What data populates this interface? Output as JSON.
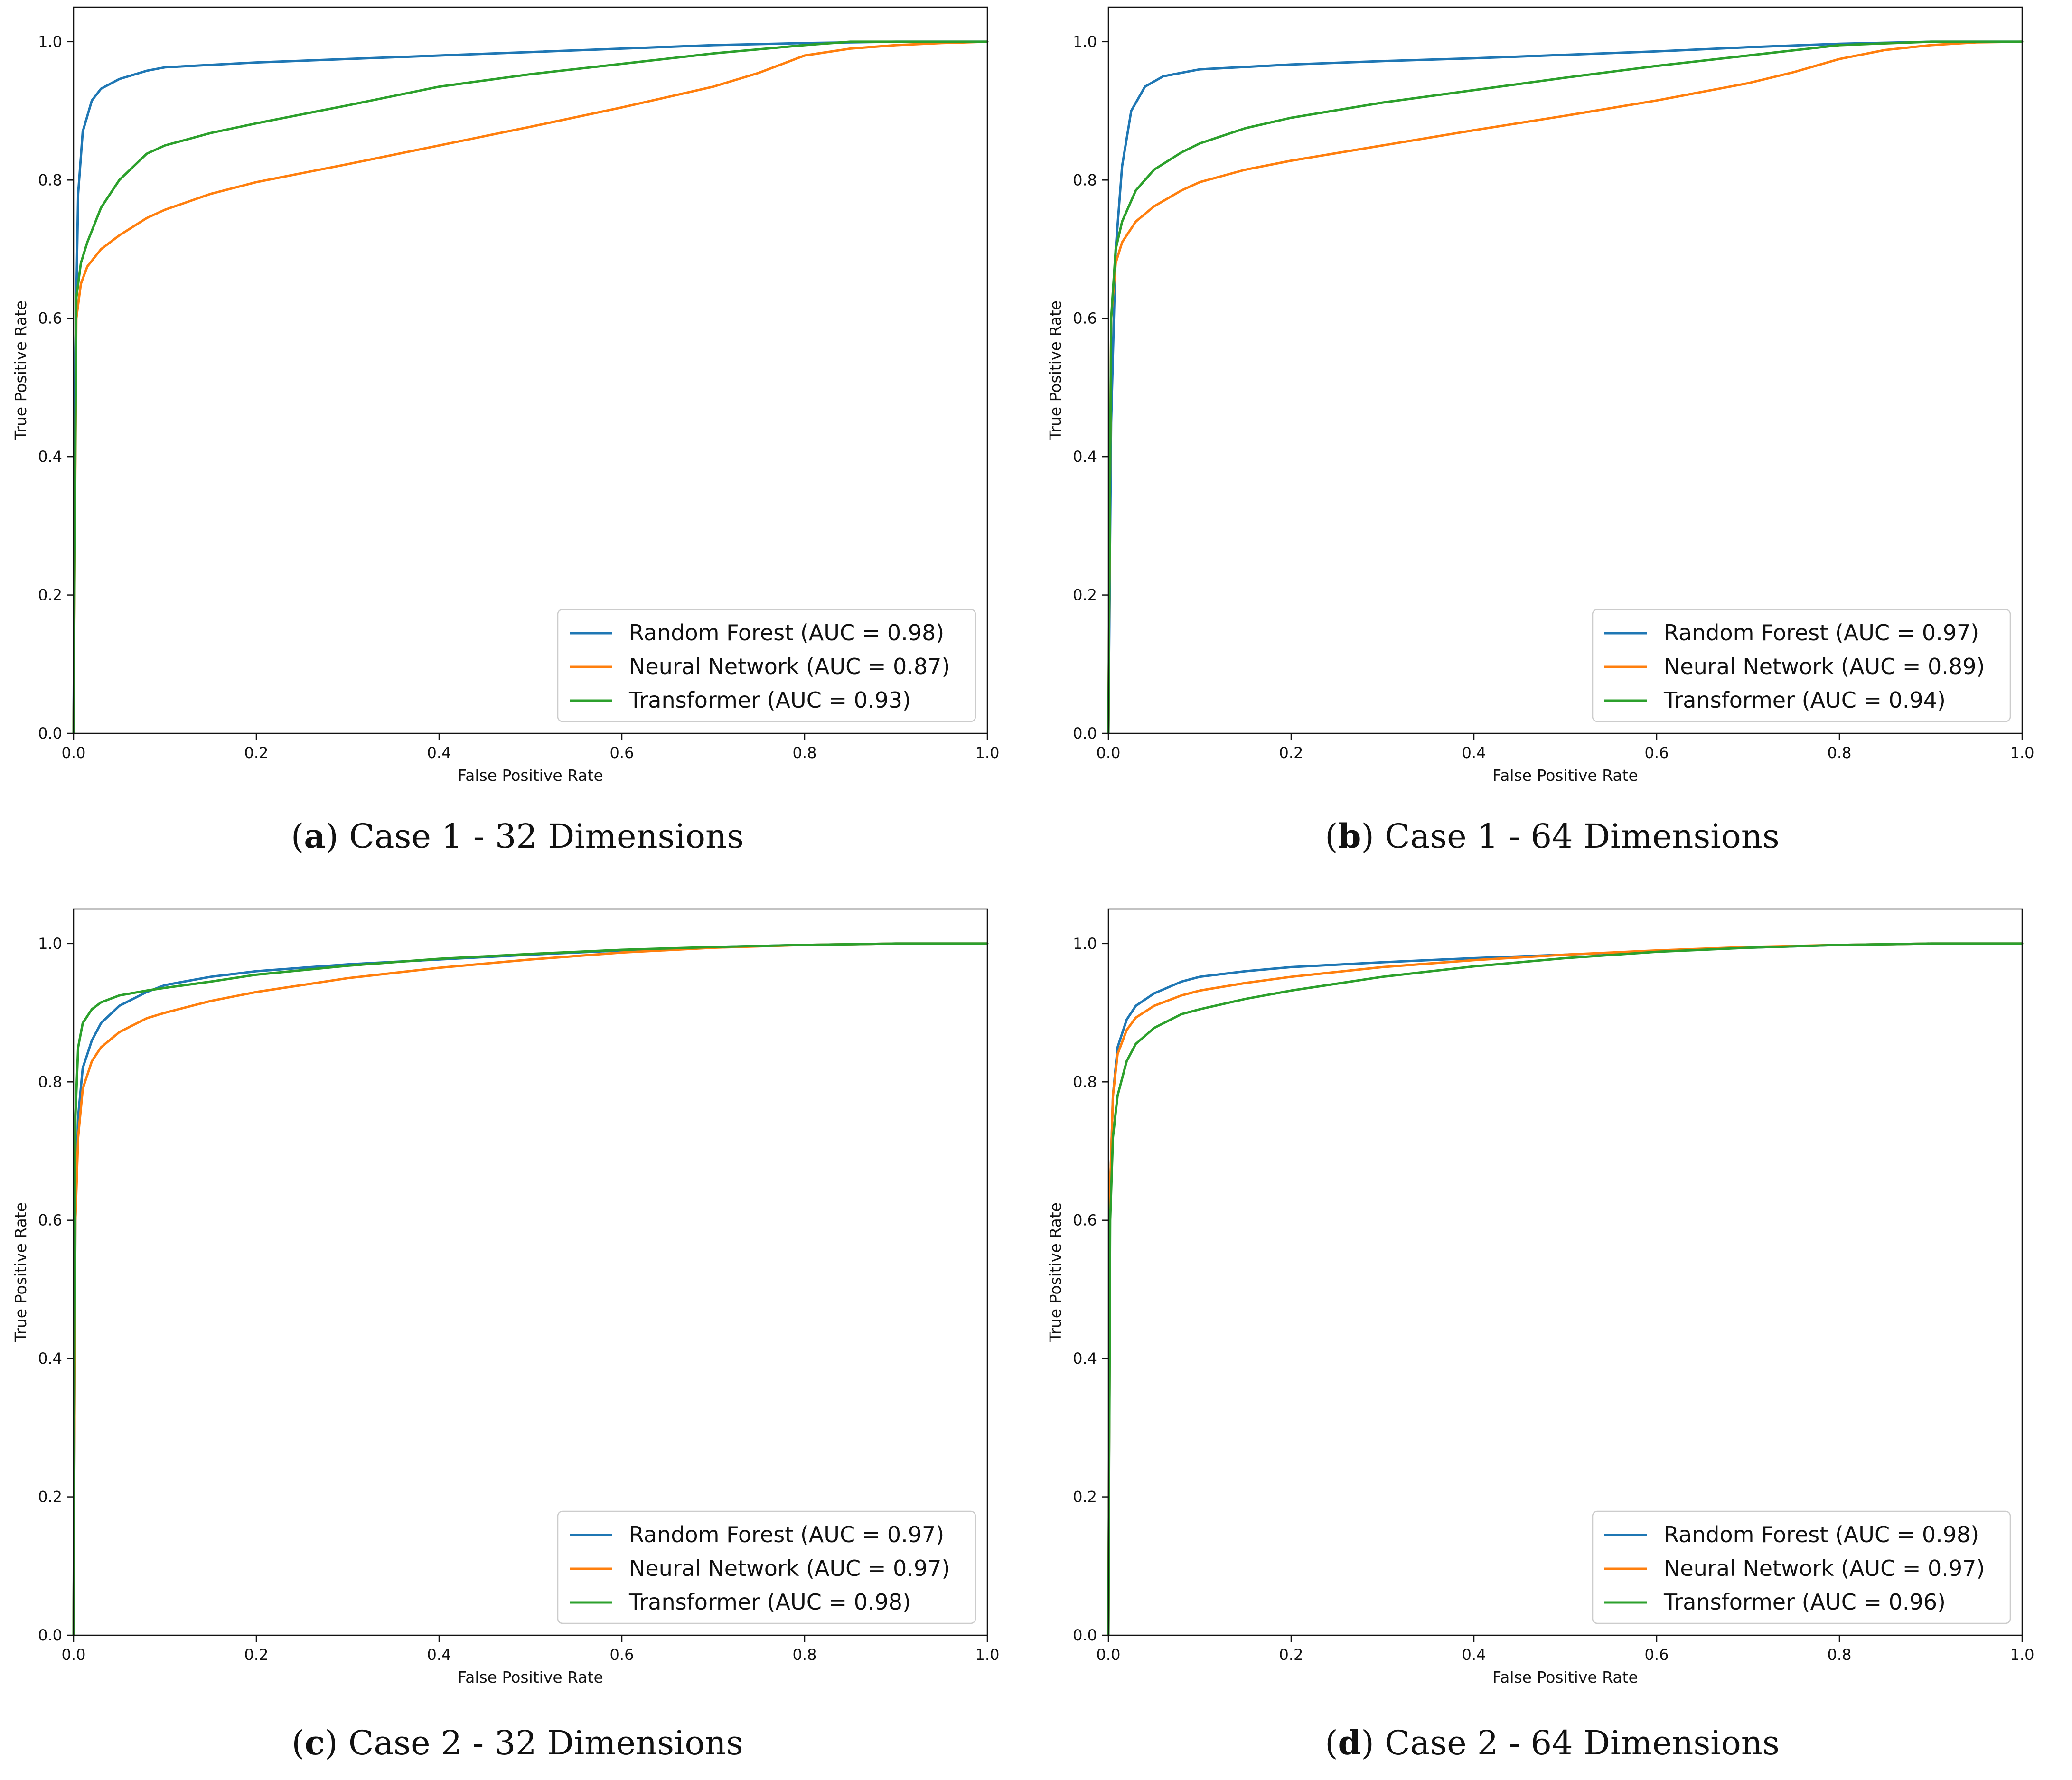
{
  "chart_data": [
    {
      "type": "line",
      "caption_letter": "a",
      "caption_text": "Case 1 - 32 Dimensions",
      "xlabel": "False Positive Rate",
      "ylabel": "True Positive Rate",
      "xlim": [
        0.0,
        1.0
      ],
      "ylim": [
        0.0,
        1.05
      ],
      "xticks": [
        "0.0",
        "0.2",
        "0.4",
        "0.6",
        "0.8",
        "1.0"
      ],
      "yticks": [
        "0.0",
        "0.2",
        "0.4",
        "0.6",
        "0.8",
        "1.0"
      ],
      "legend_position": "lower-right",
      "series": [
        {
          "name": "Random Forest (AUC = 0.98)",
          "color": "#1f77b4",
          "x": [
            0,
            0.002,
            0.005,
            0.01,
            0.02,
            0.03,
            0.05,
            0.08,
            0.1,
            0.2,
            0.3,
            0.4,
            0.5,
            0.6,
            0.7,
            0.8,
            0.9,
            1.0
          ],
          "y": [
            0,
            0.55,
            0.78,
            0.87,
            0.915,
            0.932,
            0.946,
            0.958,
            0.963,
            0.97,
            0.975,
            0.98,
            0.985,
            0.99,
            0.995,
            0.998,
            1.0,
            1.0
          ]
        },
        {
          "name": "Neural Network (AUC = 0.87)",
          "color": "#ff7f0e",
          "x": [
            0,
            0.003,
            0.008,
            0.015,
            0.03,
            0.05,
            0.08,
            0.1,
            0.15,
            0.2,
            0.3,
            0.4,
            0.5,
            0.6,
            0.7,
            0.75,
            0.8,
            0.85,
            0.9,
            0.95,
            1.0
          ],
          "y": [
            0,
            0.6,
            0.65,
            0.675,
            0.7,
            0.72,
            0.745,
            0.757,
            0.78,
            0.797,
            0.823,
            0.85,
            0.877,
            0.905,
            0.935,
            0.955,
            0.98,
            0.99,
            0.995,
            0.998,
            1.0
          ]
        },
        {
          "name": "Transformer (AUC = 0.93)",
          "color": "#2ca02c",
          "x": [
            0,
            0.003,
            0.008,
            0.015,
            0.03,
            0.05,
            0.08,
            0.1,
            0.15,
            0.2,
            0.3,
            0.4,
            0.5,
            0.6,
            0.7,
            0.8,
            0.85,
            0.9,
            1.0
          ],
          "y": [
            0,
            0.63,
            0.68,
            0.71,
            0.76,
            0.8,
            0.838,
            0.85,
            0.868,
            0.882,
            0.908,
            0.935,
            0.953,
            0.968,
            0.983,
            0.995,
            1.0,
            1.0,
            1.0
          ]
        }
      ]
    },
    {
      "type": "line",
      "caption_letter": "b",
      "caption_text": "Case 1 - 64 Dimensions",
      "xlabel": "False Positive Rate",
      "ylabel": "True Positive Rate",
      "xlim": [
        0.0,
        1.0
      ],
      "ylim": [
        0.0,
        1.05
      ],
      "xticks": [
        "0.0",
        "0.2",
        "0.4",
        "0.6",
        "0.8",
        "1.0"
      ],
      "yticks": [
        "0.0",
        "0.2",
        "0.4",
        "0.6",
        "0.8",
        "1.0"
      ],
      "legend_position": "lower-right",
      "series": [
        {
          "name": "Random Forest (AUC = 0.97)",
          "color": "#1f77b4",
          "x": [
            0,
            0.003,
            0.008,
            0.015,
            0.025,
            0.04,
            0.06,
            0.1,
            0.2,
            0.3,
            0.4,
            0.5,
            0.6,
            0.7,
            0.8,
            0.9,
            1.0
          ],
          "y": [
            0,
            0.45,
            0.7,
            0.82,
            0.9,
            0.935,
            0.95,
            0.96,
            0.967,
            0.972,
            0.976,
            0.981,
            0.986,
            0.992,
            0.997,
            1.0,
            1.0
          ]
        },
        {
          "name": "Neural Network (AUC = 0.89)",
          "color": "#ff7f0e",
          "x": [
            0,
            0.003,
            0.008,
            0.015,
            0.03,
            0.05,
            0.08,
            0.1,
            0.15,
            0.2,
            0.3,
            0.4,
            0.5,
            0.6,
            0.7,
            0.75,
            0.8,
            0.85,
            0.9,
            0.95,
            1.0
          ],
          "y": [
            0,
            0.6,
            0.68,
            0.71,
            0.74,
            0.762,
            0.785,
            0.797,
            0.815,
            0.828,
            0.85,
            0.872,
            0.893,
            0.915,
            0.94,
            0.956,
            0.975,
            0.988,
            0.995,
            0.999,
            1.0
          ]
        },
        {
          "name": "Transformer (AUC = 0.94)",
          "color": "#2ca02c",
          "x": [
            0,
            0.003,
            0.008,
            0.015,
            0.03,
            0.05,
            0.08,
            0.1,
            0.15,
            0.2,
            0.3,
            0.4,
            0.5,
            0.6,
            0.7,
            0.8,
            0.9,
            1.0
          ],
          "y": [
            0,
            0.6,
            0.7,
            0.74,
            0.785,
            0.815,
            0.84,
            0.853,
            0.875,
            0.89,
            0.912,
            0.93,
            0.948,
            0.965,
            0.98,
            0.995,
            1.0,
            1.0
          ]
        }
      ]
    },
    {
      "type": "line",
      "caption_letter": "c",
      "caption_text": "Case 2 - 32 Dimensions",
      "xlabel": "False Positive Rate",
      "ylabel": "True Positive Rate",
      "xlim": [
        0.0,
        1.0
      ],
      "ylim": [
        0.0,
        1.05
      ],
      "xticks": [
        "0.0",
        "0.2",
        "0.4",
        "0.6",
        "0.8",
        "1.0"
      ],
      "yticks": [
        "0.0",
        "0.2",
        "0.4",
        "0.6",
        "0.8",
        "1.0"
      ],
      "legend_position": "lower-right",
      "series": [
        {
          "name": "Random Forest (AUC = 0.97)",
          "color": "#1f77b4",
          "x": [
            0,
            0.002,
            0.005,
            0.01,
            0.02,
            0.03,
            0.05,
            0.08,
            0.1,
            0.15,
            0.2,
            0.3,
            0.4,
            0.5,
            0.6,
            0.7,
            0.8,
            0.9,
            1.0
          ],
          "y": [
            0,
            0.6,
            0.75,
            0.82,
            0.86,
            0.885,
            0.91,
            0.93,
            0.94,
            0.952,
            0.96,
            0.97,
            0.977,
            0.984,
            0.99,
            0.995,
            0.998,
            1.0,
            1.0
          ]
        },
        {
          "name": "Neural Network (AUC = 0.97)",
          "color": "#ff7f0e",
          "x": [
            0,
            0.002,
            0.005,
            0.01,
            0.02,
            0.03,
            0.05,
            0.08,
            0.1,
            0.15,
            0.2,
            0.3,
            0.4,
            0.5,
            0.6,
            0.7,
            0.8,
            0.9,
            1.0
          ],
          "y": [
            0,
            0.6,
            0.72,
            0.79,
            0.83,
            0.85,
            0.872,
            0.892,
            0.9,
            0.917,
            0.93,
            0.95,
            0.965,
            0.977,
            0.987,
            0.994,
            0.998,
            1.0,
            1.0
          ]
        },
        {
          "name": "Transformer (AUC = 0.98)",
          "color": "#2ca02c",
          "x": [
            0,
            0.002,
            0.005,
            0.01,
            0.02,
            0.03,
            0.05,
            0.08,
            0.1,
            0.15,
            0.2,
            0.3,
            0.4,
            0.5,
            0.6,
            0.7,
            0.8,
            0.9,
            1.0
          ],
          "y": [
            0,
            0.75,
            0.85,
            0.885,
            0.905,
            0.915,
            0.925,
            0.932,
            0.936,
            0.945,
            0.955,
            0.968,
            0.978,
            0.985,
            0.991,
            0.995,
            0.998,
            1.0,
            1.0
          ]
        }
      ]
    },
    {
      "type": "line",
      "caption_letter": "d",
      "caption_text": "Case 2 - 64 Dimensions",
      "xlabel": "False Positive Rate",
      "ylabel": "True Positive Rate",
      "xlim": [
        0.0,
        1.0
      ],
      "ylim": [
        0.0,
        1.05
      ],
      "xticks": [
        "0.0",
        "0.2",
        "0.4",
        "0.6",
        "0.8",
        "1.0"
      ],
      "yticks": [
        "0.0",
        "0.2",
        "0.4",
        "0.6",
        "0.8",
        "1.0"
      ],
      "legend_position": "lower-right",
      "series": [
        {
          "name": "Random Forest (AUC = 0.98)",
          "color": "#1f77b4",
          "x": [
            0,
            0.002,
            0.005,
            0.01,
            0.02,
            0.03,
            0.05,
            0.08,
            0.1,
            0.15,
            0.2,
            0.3,
            0.4,
            0.5,
            0.6,
            0.7,
            0.8,
            0.9,
            1.0
          ],
          "y": [
            0,
            0.65,
            0.78,
            0.85,
            0.89,
            0.91,
            0.928,
            0.945,
            0.952,
            0.96,
            0.966,
            0.973,
            0.979,
            0.984,
            0.989,
            0.994,
            0.998,
            1.0,
            1.0
          ]
        },
        {
          "name": "Neural Network (AUC = 0.97)",
          "color": "#ff7f0e",
          "x": [
            0,
            0.002,
            0.005,
            0.01,
            0.02,
            0.03,
            0.05,
            0.08,
            0.1,
            0.15,
            0.2,
            0.3,
            0.4,
            0.5,
            0.6,
            0.7,
            0.8,
            0.9,
            1.0
          ],
          "y": [
            0,
            0.65,
            0.78,
            0.84,
            0.875,
            0.893,
            0.91,
            0.925,
            0.932,
            0.943,
            0.952,
            0.966,
            0.976,
            0.984,
            0.99,
            0.995,
            0.998,
            1.0,
            1.0
          ]
        },
        {
          "name": "Transformer (AUC = 0.96)",
          "color": "#2ca02c",
          "x": [
            0,
            0.002,
            0.005,
            0.01,
            0.02,
            0.03,
            0.05,
            0.08,
            0.1,
            0.15,
            0.2,
            0.3,
            0.4,
            0.5,
            0.6,
            0.7,
            0.8,
            0.9,
            1.0
          ],
          "y": [
            0,
            0.6,
            0.72,
            0.78,
            0.83,
            0.855,
            0.878,
            0.898,
            0.905,
            0.92,
            0.932,
            0.952,
            0.967,
            0.979,
            0.988,
            0.994,
            0.998,
            1.0,
            1.0
          ]
        }
      ]
    }
  ]
}
